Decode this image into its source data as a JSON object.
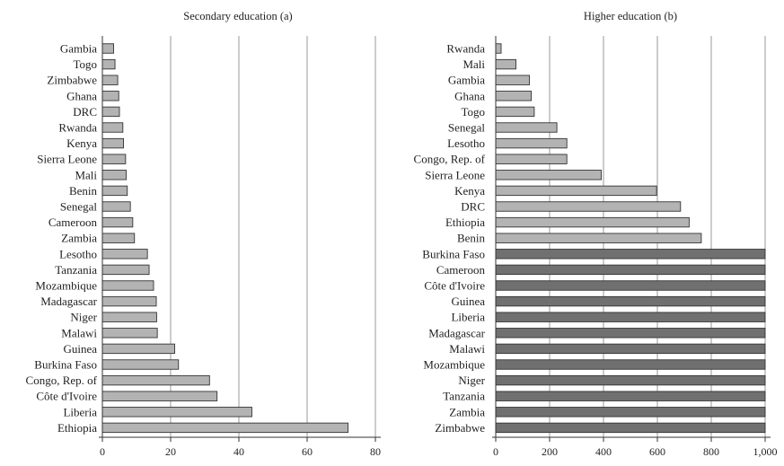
{
  "chart_data": [
    {
      "type": "bar",
      "orientation": "horizontal",
      "title": "Secondary education (a)",
      "xlim": [
        0,
        80
      ],
      "ticks": [
        "0",
        "20",
        "40",
        "60",
        "80"
      ],
      "tick_values": [
        0,
        20,
        40,
        60,
        80
      ],
      "grid": true,
      "categories": [
        "Gambia",
        "Togo",
        "Zimbabwe",
        "Ghana",
        "DRC",
        "Rwanda",
        "Kenya",
        "Sierra Leone",
        "Mali",
        "Benin",
        "Senegal",
        "Cameroon",
        "Zambia",
        "Lesotho",
        "Tanzania",
        "Mozambique",
        "Madagascar",
        "Niger",
        "Malawi",
        "Guinea",
        "Burkina Faso",
        "Congo, Rep. of",
        "Côte d'Ivoire",
        "Liberia",
        "Ethiopia"
      ],
      "values": [
        3.3,
        3.7,
        4.5,
        4.8,
        5.0,
        6.0,
        6.2,
        6.8,
        7.0,
        7.3,
        8.2,
        8.9,
        9.4,
        13.2,
        13.7,
        15.0,
        15.8,
        15.9,
        16.1,
        21.2,
        22.3,
        31.4,
        33.6,
        43.8,
        72.0
      ],
      "shade": [
        "light",
        "light",
        "light",
        "light",
        "light",
        "light",
        "light",
        "light",
        "light",
        "light",
        "light",
        "light",
        "light",
        "light",
        "light",
        "light",
        "light",
        "light",
        "light",
        "light",
        "light",
        "light",
        "light",
        "light",
        "light"
      ]
    },
    {
      "type": "bar",
      "orientation": "horizontal",
      "title": "Higher education (b)",
      "xlim": [
        0,
        1000
      ],
      "ticks": [
        "0",
        "200",
        "400",
        "600",
        "800",
        "1,000"
      ],
      "tick_values": [
        0,
        200,
        400,
        600,
        800,
        1000
      ],
      "grid": true,
      "categories": [
        "Rwanda",
        "Mali",
        "Gambia",
        "Ghana",
        "Togo",
        "Senegal",
        "Lesotho",
        "Congo, Rep. of",
        "Sierra Leone",
        "Kenya",
        "DRC",
        "Ethiopia",
        "Benin",
        "Burkina Faso",
        "Cameroon",
        "Côte d'Ivoire",
        "Guinea",
        "Liberia",
        "Madagascar",
        "Malawi",
        "Mozambique",
        "Niger",
        "Tanzania",
        "Zambia",
        "Zimbabwe"
      ],
      "values": [
        20,
        75,
        125,
        132,
        143,
        227,
        264,
        264,
        392,
        597,
        686,
        718,
        763,
        1000,
        1000,
        1000,
        1000,
        1000,
        1000,
        1000,
        1000,
        1000,
        1000,
        1000,
        1000
      ],
      "shade": [
        "light",
        "light",
        "light",
        "light",
        "light",
        "light",
        "light",
        "light",
        "light",
        "light",
        "light",
        "light",
        "light",
        "dark",
        "dark",
        "dark",
        "dark",
        "dark",
        "dark",
        "dark",
        "dark",
        "dark",
        "dark",
        "dark",
        "dark"
      ]
    }
  ]
}
